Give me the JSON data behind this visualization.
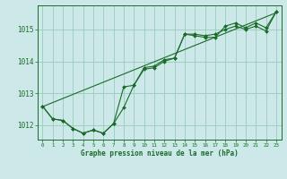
{
  "xlabel": "Graphe pression niveau de la mer (hPa)",
  "bg_color": "#cce8e8",
  "grid_color": "#99ccbb",
  "line_color": "#1a6b2a",
  "x": [
    0,
    1,
    2,
    3,
    4,
    5,
    6,
    7,
    8,
    9,
    10,
    11,
    12,
    13,
    14,
    15,
    16,
    17,
    18,
    19,
    20,
    21,
    22,
    23
  ],
  "series1": [
    1012.6,
    1012.2,
    1012.15,
    1011.9,
    1011.75,
    1011.85,
    1011.75,
    1012.05,
    1012.55,
    1013.25,
    1013.8,
    1013.85,
    1014.05,
    1014.1,
    1014.85,
    1014.8,
    1014.75,
    1014.75,
    1015.1,
    1015.2,
    1015.05,
    1015.2,
    1015.05,
    1015.55
  ],
  "series2": [
    1012.6,
    1012.2,
    1012.15,
    1011.9,
    1011.75,
    1011.85,
    1011.75,
    1012.05,
    1013.2,
    1013.25,
    1013.75,
    1013.8,
    1014.0,
    1014.1,
    1014.85,
    1014.85,
    1014.8,
    1014.85,
    1015.0,
    1015.1,
    1015.0,
    1015.1,
    1014.95,
    1015.55
  ],
  "trend_x": [
    0,
    23
  ],
  "trend_y": [
    1012.58,
    1015.52
  ],
  "ylim": [
    1011.55,
    1015.75
  ],
  "yticks": [
    1012,
    1013,
    1014,
    1015
  ],
  "xticks": [
    0,
    1,
    2,
    3,
    4,
    5,
    6,
    7,
    8,
    9,
    10,
    11,
    12,
    13,
    14,
    15,
    16,
    17,
    18,
    19,
    20,
    21,
    22,
    23
  ],
  "xlabel_fontsize": 5.5,
  "ytick_fontsize": 5.5,
  "xtick_fontsize": 4.2,
  "linewidth": 0.8,
  "markersize": 2.0
}
